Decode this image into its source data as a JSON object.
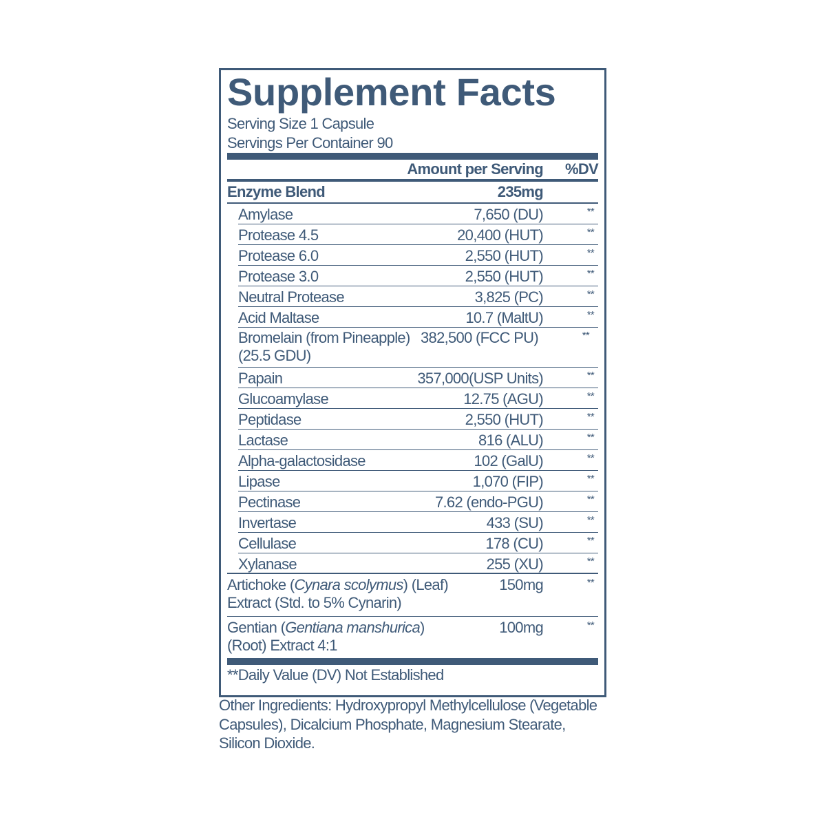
{
  "title": "Supplement Facts",
  "serving_size": "Serving Size 1 Capsule",
  "servings_per_container": "Servings Per Container 90",
  "header": {
    "amount": "Amount per Serving",
    "dv": "%DV"
  },
  "blend": {
    "name": "Enzyme Blend",
    "amount": "235mg"
  },
  "enzymes": [
    {
      "name": "Amylase",
      "amount": "7,650 (DU)",
      "dv": "**"
    },
    {
      "name": "Protease 4.5",
      "amount": "20,400 (HUT)",
      "dv": "**"
    },
    {
      "name": "Protease 6.0",
      "amount": "2,550 (HUT)",
      "dv": "**"
    },
    {
      "name": "Protease 3.0",
      "amount": "2,550 (HUT)",
      "dv": "**"
    },
    {
      "name": "Neutral Protease",
      "amount": "3,825 (PC)",
      "dv": "**"
    },
    {
      "name": "Acid Maltase",
      "amount": "10.7 (MaltU)",
      "dv": "**"
    },
    {
      "name": "Bromelain (from Pineapple) (25.5 GDU)",
      "amount": "382,500 (FCC PU)",
      "dv": "**"
    },
    {
      "name": "Papain",
      "amount": "357,000(USP Units)",
      "dv": "**"
    },
    {
      "name": "Glucoamylase",
      "amount": "12.75 (AGU)",
      "dv": "**"
    },
    {
      "name": "Peptidase",
      "amount": "2,550 (HUT)",
      "dv": "**"
    },
    {
      "name": "Lactase",
      "amount": "816 (ALU)",
      "dv": "**"
    },
    {
      "name": "Alpha-galactosidase",
      "amount": "102 (GalU)",
      "dv": "**"
    },
    {
      "name": "Lipase",
      "amount": "1,070 (FIP)",
      "dv": "**"
    },
    {
      "name": "Pectinase",
      "amount": "7.62 (endo-PGU)",
      "dv": "**"
    },
    {
      "name": "Invertase",
      "amount": "433 (SU)",
      "dv": "**"
    },
    {
      "name": "Cellulase",
      "amount": "178 (CU)",
      "dv": "**"
    },
    {
      "name": "Xylanase",
      "amount": "255 (XU)",
      "dv": "**"
    }
  ],
  "artichoke": {
    "pre": "Artichoke (",
    "latin": "Cynara scolymus",
    "post": ") (Leaf)",
    "line2": "Extract (Std. to 5% Cynarin)",
    "amount": "150mg",
    "dv": "**"
  },
  "gentian": {
    "pre": "Gentian (",
    "latin": "Gentiana manshurica",
    "post": ")",
    "line2": "(Root) Extract 4:1",
    "amount": "100mg",
    "dv": "**"
  },
  "footnote": "**Daily Value (DV) Not Established",
  "other_ingredients": "Other Ingredients: Hydroxypropyl Methylcellulose (Vegetable Capsules), Dicalcium Phosphate, Magnesium Stearate, Silicon Dioxide.",
  "colors": {
    "ink": "#3f5a78"
  }
}
